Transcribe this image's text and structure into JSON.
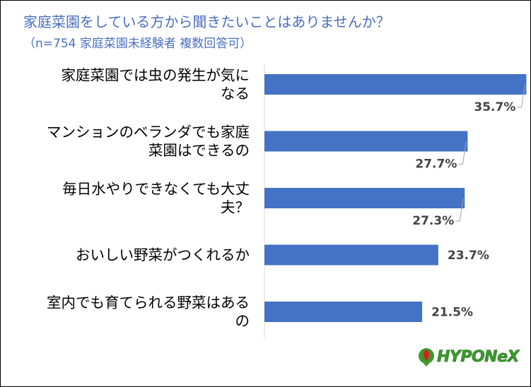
{
  "title": "家庭菜園をしている方から聞きたいことはありませんか？",
  "subtitle": "（n=754 家庭菜園未経験者 複数回答可）",
  "logo_text": "HYPONeX",
  "colors": {
    "bar": "#4472C4",
    "title": "#4A6EC0",
    "value_label": "#444444",
    "logo": "#3a9a2c"
  },
  "chart_data": {
    "type": "bar",
    "orientation": "horizontal",
    "title": "家庭菜園をしている方から聞きたいことはありませんか？",
    "subtitle": "（n=754 家庭菜園未経験者 複数回答可）",
    "categories": [
      "家庭菜園では虫の発生が気になる",
      "マンションのベランダでも家庭菜園はできるの",
      "毎日水やりできなくても大丈夫？",
      "おいしい野菜がつくれるか",
      "室内でも育てられる野菜はあるの"
    ],
    "category_label_lines": [
      [
        "家庭菜園では虫の発生が気に",
        "なる"
      ],
      [
        "マンションのベランダでも家庭",
        "菜園はできるの"
      ],
      [
        "毎日水やりできなくても大丈",
        "夫？"
      ],
      [
        "おいしい野菜がつくれるか"
      ],
      [
        "室内でも育てられる野菜はある",
        "の"
      ]
    ],
    "values": [
      35.7,
      27.7,
      27.3,
      23.7,
      21.5
    ],
    "value_labels": [
      "35.7%",
      "27.7%",
      "27.3%",
      "23.7%",
      "21.5%"
    ],
    "unit": "%",
    "xlim": [
      0,
      40
    ],
    "grid": false,
    "legend": "none"
  }
}
